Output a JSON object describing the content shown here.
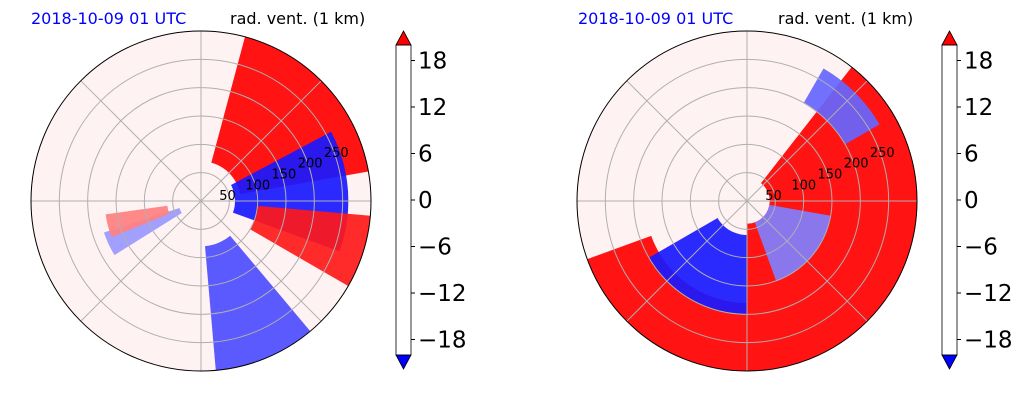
{
  "chart_data": [
    {
      "type": "heatmap",
      "projection": "polar",
      "title_left": "2018-10-09 01 UTC",
      "title_right": "rad. vent. (1 km)",
      "radial_tick_labels": [
        "50",
        "100",
        "150",
        "200",
        "250"
      ],
      "radial_max": 300,
      "colorbar": {
        "ticks": [
          18,
          12,
          6,
          0,
          -6,
          -12,
          -18
        ],
        "tick_labels": [
          "18",
          "12",
          "6",
          "0",
          "−6",
          "−12",
          "−18"
        ],
        "range": [
          -20,
          20
        ],
        "extend": "both",
        "colormap": "bwr"
      },
      "features": [
        {
          "sign": "positive",
          "az_from": 15,
          "az_to": 80,
          "r_from": 70,
          "r_to": 300,
          "level": 20
        },
        {
          "sign": "negative",
          "az_from": 62,
          "az_to": 110,
          "r_from": 60,
          "r_to": 260,
          "level": -18
        },
        {
          "sign": "positive",
          "az_from": 95,
          "az_to": 120,
          "r_from": 100,
          "r_to": 300,
          "level": 18
        },
        {
          "sign": "negative",
          "az_from": 140,
          "az_to": 175,
          "r_from": 80,
          "r_to": 300,
          "level": -14
        },
        {
          "sign": "negative",
          "az_from": 238,
          "az_to": 252,
          "r_from": 40,
          "r_to": 180,
          "level": -8
        },
        {
          "sign": "positive",
          "az_from": 248,
          "az_to": 262,
          "r_from": 60,
          "r_to": 170,
          "level": 10
        }
      ]
    },
    {
      "type": "heatmap",
      "projection": "polar",
      "title_left": "2018-10-09 01 UTC",
      "title_right": "rad. vent. (1 km)",
      "radial_tick_labels": [
        "50",
        "100",
        "150",
        "200",
        "250"
      ],
      "radial_max": 300,
      "colorbar": {
        "ticks": [
          18,
          12,
          6,
          0,
          -6,
          -12,
          -18
        ],
        "tick_labels": [
          "18",
          "12",
          "6",
          "0",
          "−6",
          "−12",
          "−18"
        ],
        "range": [
          -20,
          20
        ],
        "extend": "both",
        "colormap": "bwr"
      },
      "features": [
        {
          "sign": "positive",
          "az_from": 38,
          "az_to": 180,
          "r_from": 40,
          "r_to": 300,
          "level": 20
        },
        {
          "sign": "positive",
          "az_from": 180,
          "az_to": 250,
          "r_from": 180,
          "r_to": 300,
          "level": 20
        },
        {
          "sign": "negative",
          "az_from": 180,
          "az_to": 240,
          "r_from": 60,
          "r_to": 200,
          "level": -18
        },
        {
          "sign": "negative",
          "az_from": 100,
          "az_to": 160,
          "r_from": 40,
          "r_to": 150,
          "level": -10
        },
        {
          "sign": "negative",
          "az_from": 30,
          "az_to": 60,
          "r_from": 200,
          "r_to": 270,
          "level": -12
        }
      ]
    }
  ]
}
